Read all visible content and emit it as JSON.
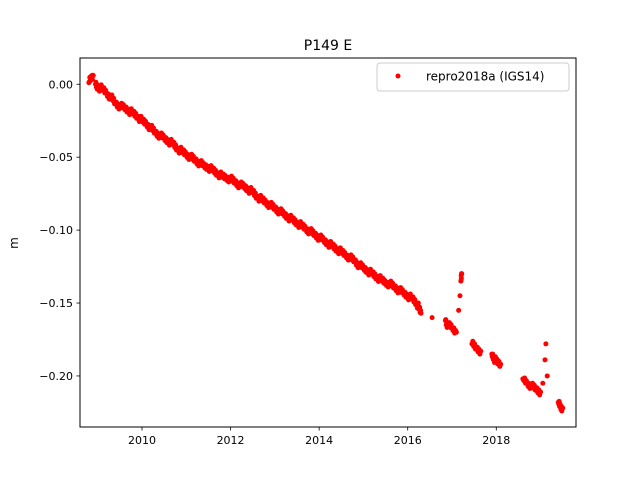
{
  "chart_data": {
    "type": "scatter",
    "title": "P149 E",
    "xlabel": "",
    "ylabel": "m",
    "xlim": [
      2008.6,
      2019.8
    ],
    "ylim": [
      -0.235,
      0.018
    ],
    "x_ticks": [
      2010,
      2012,
      2014,
      2016,
      2018
    ],
    "y_ticks": [
      0.0,
      -0.05,
      -0.1,
      -0.15,
      -0.2
    ],
    "y_tick_labels": [
      "0.00",
      "−0.05",
      "−0.10",
      "−0.15",
      "−0.20"
    ],
    "grid": false,
    "legend_position": "top-right",
    "series": [
      {
        "name": "repro2018a (IGS14)",
        "color": "#ff0000",
        "marker": "circle",
        "points": [
          [
            2008.8,
            0.001
          ],
          [
            2008.85,
            0.004
          ],
          [
            2008.9,
            0.006
          ],
          [
            2008.95,
            0.0
          ],
          [
            2009.0,
            -0.002
          ],
          [
            2009.1,
            -0.003
          ],
          [
            2009.2,
            -0.006
          ],
          [
            2009.3,
            -0.009
          ],
          [
            2009.4,
            -0.013
          ],
          [
            2009.5,
            -0.015
          ],
          [
            2009.6,
            -0.016
          ],
          [
            2009.7,
            -0.018
          ],
          [
            2009.8,
            -0.02
          ],
          [
            2009.9,
            -0.022
          ],
          [
            2010.0,
            -0.025
          ],
          [
            2010.1,
            -0.027
          ],
          [
            2010.2,
            -0.03
          ],
          [
            2010.3,
            -0.033
          ],
          [
            2010.4,
            -0.035
          ],
          [
            2010.5,
            -0.037
          ],
          [
            2010.6,
            -0.039
          ],
          [
            2010.7,
            -0.041
          ],
          [
            2010.8,
            -0.044
          ],
          [
            2010.9,
            -0.046
          ],
          [
            2011.0,
            -0.048
          ],
          [
            2011.1,
            -0.05
          ],
          [
            2011.2,
            -0.052
          ],
          [
            2011.3,
            -0.054
          ],
          [
            2011.4,
            -0.056
          ],
          [
            2011.5,
            -0.057
          ],
          [
            2011.6,
            -0.059
          ],
          [
            2011.7,
            -0.061
          ],
          [
            2011.8,
            -0.063
          ],
          [
            2011.9,
            -0.064
          ],
          [
            2012.0,
            -0.065
          ],
          [
            2012.1,
            -0.067
          ],
          [
            2012.2,
            -0.069
          ],
          [
            2012.3,
            -0.07
          ],
          [
            2012.4,
            -0.072
          ],
          [
            2012.5,
            -0.074
          ],
          [
            2012.6,
            -0.077
          ],
          [
            2012.7,
            -0.079
          ],
          [
            2012.8,
            -0.081
          ],
          [
            2012.9,
            -0.083
          ],
          [
            2013.0,
            -0.085
          ],
          [
            2013.1,
            -0.087
          ],
          [
            2013.2,
            -0.089
          ],
          [
            2013.3,
            -0.091
          ],
          [
            2013.4,
            -0.093
          ],
          [
            2013.5,
            -0.095
          ],
          [
            2013.6,
            -0.097
          ],
          [
            2013.7,
            -0.099
          ],
          [
            2013.8,
            -0.101
          ],
          [
            2013.9,
            -0.103
          ],
          [
            2014.0,
            -0.105
          ],
          [
            2014.1,
            -0.107
          ],
          [
            2014.2,
            -0.109
          ],
          [
            2014.3,
            -0.111
          ],
          [
            2014.4,
            -0.113
          ],
          [
            2014.5,
            -0.115
          ],
          [
            2014.6,
            -0.117
          ],
          [
            2014.7,
            -0.119
          ],
          [
            2014.8,
            -0.121
          ],
          [
            2014.9,
            -0.124
          ],
          [
            2015.0,
            -0.126
          ],
          [
            2015.1,
            -0.128
          ],
          [
            2015.2,
            -0.13
          ],
          [
            2015.3,
            -0.132
          ],
          [
            2015.4,
            -0.134
          ],
          [
            2015.5,
            -0.136
          ],
          [
            2015.6,
            -0.137
          ],
          [
            2015.7,
            -0.139
          ],
          [
            2015.8,
            -0.141
          ],
          [
            2015.9,
            -0.143
          ],
          [
            2016.0,
            -0.145
          ],
          [
            2016.1,
            -0.147
          ],
          [
            2016.2,
            -0.15
          ],
          [
            2016.25,
            -0.153
          ],
          [
            2016.3,
            -0.157
          ],
          [
            2016.55,
            -0.16
          ],
          [
            2016.85,
            -0.162
          ],
          [
            2016.9,
            -0.165
          ],
          [
            2017.0,
            -0.167
          ],
          [
            2017.1,
            -0.17
          ],
          [
            2017.15,
            -0.155
          ],
          [
            2017.18,
            -0.145
          ],
          [
            2017.2,
            -0.135
          ],
          [
            2017.22,
            -0.13
          ],
          [
            2017.45,
            -0.178
          ],
          [
            2017.55,
            -0.181
          ],
          [
            2017.65,
            -0.183
          ],
          [
            2017.9,
            -0.185
          ],
          [
            2017.95,
            -0.188
          ],
          [
            2018.0,
            -0.19
          ],
          [
            2018.1,
            -0.192
          ],
          [
            2018.6,
            -0.202
          ],
          [
            2018.7,
            -0.205
          ],
          [
            2018.8,
            -0.207
          ],
          [
            2018.9,
            -0.209
          ],
          [
            2019.0,
            -0.211
          ],
          [
            2019.05,
            -0.205
          ],
          [
            2019.1,
            -0.189
          ],
          [
            2019.12,
            -0.178
          ],
          [
            2019.15,
            -0.2
          ],
          [
            2019.4,
            -0.218
          ],
          [
            2019.45,
            -0.221
          ],
          [
            2019.5,
            -0.222
          ]
        ]
      }
    ]
  }
}
